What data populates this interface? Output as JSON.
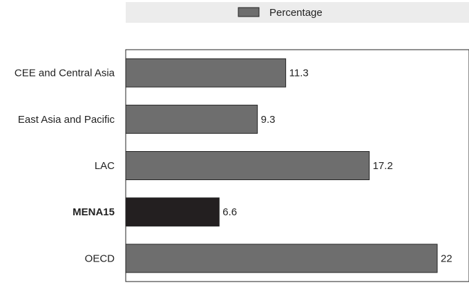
{
  "chart_data": {
    "type": "bar",
    "orientation": "horizontal",
    "categories": [
      "CEE and Central Asia",
      "East Asia and Pacific",
      "LAC",
      "MENA15",
      "OECD"
    ],
    "series": [
      {
        "name": "Percentage",
        "values": [
          11.3,
          9.3,
          17.2,
          6.6,
          22
        ]
      }
    ],
    "data_labels": [
      "11.3",
      "9.3",
      "17.2",
      "6.6",
      "22"
    ],
    "highlight_category": "MENA15",
    "xlim": [
      0,
      24
    ],
    "grid": false,
    "legend_position": "top",
    "colors": {
      "bar": "#6e6e6e",
      "highlight": "#231f20",
      "legend_background": "#ececec"
    }
  }
}
